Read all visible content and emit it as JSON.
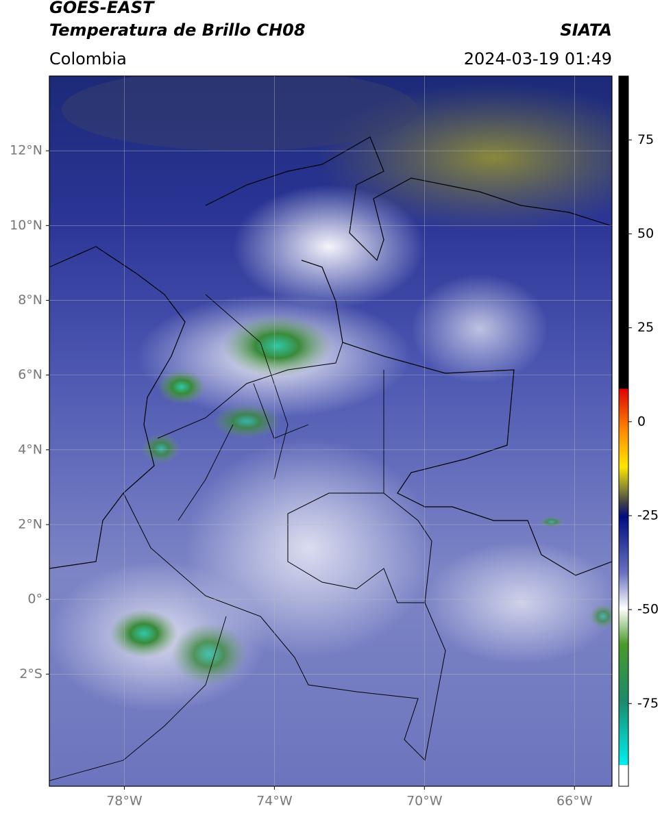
{
  "map": {
    "title": "GOES-EAST",
    "subtitle": "Temperatura de Brillo CH08",
    "source": "SIATA",
    "region": "Colombia",
    "datetime": "2024-03-19 01:49",
    "xlim": [
      -80,
      -65
    ],
    "ylim": [
      -5,
      14
    ],
    "xticks": [
      {
        "value": -78,
        "label": "78°W"
      },
      {
        "value": -74,
        "label": "74°W"
      },
      {
        "value": -70,
        "label": "70°W"
      },
      {
        "value": -66,
        "label": "66°W"
      }
    ],
    "yticks": [
      {
        "value": 12,
        "label": "12°N"
      },
      {
        "value": 10,
        "label": "10°N"
      },
      {
        "value": 8,
        "label": "8°N"
      },
      {
        "value": 6,
        "label": "6°N"
      },
      {
        "value": 4,
        "label": "4°N"
      },
      {
        "value": 2,
        "label": "2°N"
      },
      {
        "value": 0,
        "label": "0°"
      },
      {
        "value": -2,
        "label": "2°S"
      }
    ],
    "grid": true,
    "colorbar": {
      "lim": [
        -97,
        92
      ],
      "ticks": [
        75,
        50,
        25,
        0,
        -25,
        -50,
        -75
      ]
    }
  }
}
